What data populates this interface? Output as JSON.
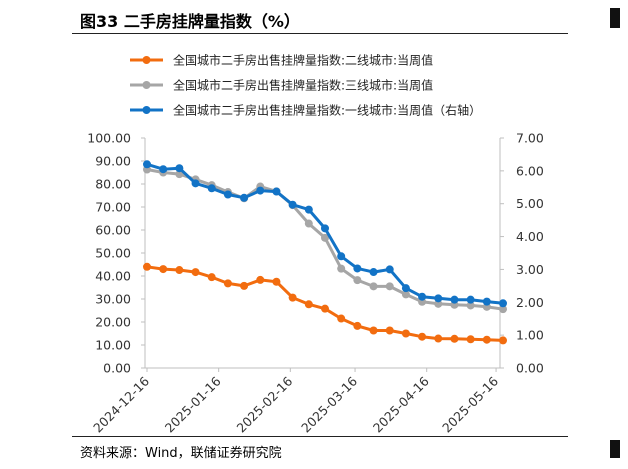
{
  "title": "图33 二手房挂牌量指数（%）",
  "source": "资料来源：Wind，联储证券研究院",
  "chart_data": {
    "type": "line",
    "x": [
      "2024-12-16",
      "2024-12-23",
      "2024-12-30",
      "2025-01-06",
      "2025-01-13",
      "2025-01-20",
      "2025-01-27",
      "2025-02-03",
      "2025-02-10",
      "2025-02-17",
      "2025-02-24",
      "2025-03-03",
      "2025-03-10",
      "2025-03-17",
      "2025-03-24",
      "2025-03-31",
      "2025-04-07",
      "2025-04-14",
      "2025-04-21",
      "2025-04-28",
      "2025-05-05",
      "2025-05-12",
      "2025-05-19"
    ],
    "x_tick_labels": [
      "2024-12-16",
      "2025-01-16",
      "2025-02-16",
      "2025-03-16",
      "2025-04-16",
      "2025-05-16"
    ],
    "y_left": {
      "ticks": [
        "0.00",
        "10.00",
        "20.00",
        "30.00",
        "40.00",
        "50.00",
        "60.00",
        "70.00",
        "80.00",
        "90.00",
        "100.00"
      ],
      "lim": [
        0,
        100
      ]
    },
    "y_right": {
      "ticks": [
        "0.00",
        "1.00",
        "2.00",
        "3.00",
        "4.00",
        "5.00",
        "6.00",
        "7.00"
      ],
      "lim": [
        0,
        7
      ]
    },
    "legend_position": "top",
    "series": [
      {
        "name": "全国城市二手房出售挂牌量指数:二线城市:当周值",
        "color": "#f26c0f",
        "axis": "left",
        "values": [
          44.0,
          43.0,
          42.6,
          41.7,
          39.5,
          36.8,
          35.7,
          38.3,
          37.5,
          30.6,
          27.7,
          25.8,
          21.5,
          18.3,
          16.3,
          16.3,
          15.0,
          13.6,
          12.8,
          12.7,
          12.5,
          12.3,
          12.0
        ]
      },
      {
        "name": "全国城市二手房出售挂牌量指数:三线城市:当周值",
        "color": "#a6a6a6",
        "axis": "left",
        "values": [
          86.3,
          85.0,
          84.3,
          82.0,
          79.5,
          76.5,
          73.8,
          78.9,
          76.8,
          70.8,
          62.8,
          56.6,
          43.2,
          38.2,
          35.5,
          35.5,
          32.0,
          28.8,
          27.9,
          27.5,
          27.2,
          26.6,
          25.6
        ]
      },
      {
        "name": "全国城市二手房出售挂牌量指数:一线城市:当周值（右轴）",
        "color": "#1273c6",
        "axis": "right",
        "values": [
          6.2,
          6.05,
          6.08,
          5.62,
          5.47,
          5.28,
          5.18,
          5.4,
          5.37,
          4.97,
          4.82,
          4.25,
          3.4,
          3.03,
          2.92,
          3.0,
          2.43,
          2.17,
          2.12,
          2.08,
          2.08,
          2.02,
          1.97
        ]
      }
    ]
  }
}
